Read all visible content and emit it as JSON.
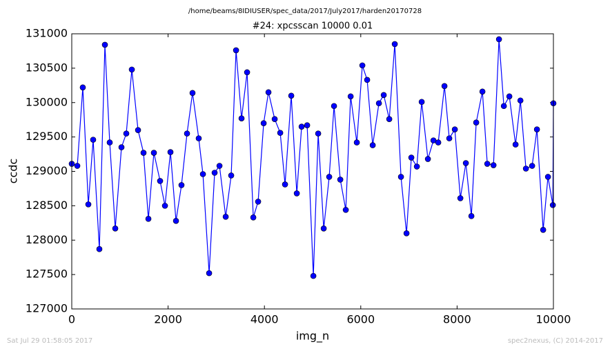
{
  "chart_data": {
    "type": "line",
    "suptitle": "/home/beams/8IDIUSER/spec_data/2017/July2017/harden20170728",
    "title": "#24: xpcsscan 10000 0.01",
    "x_label": "img_n",
    "y_label": "ccdc",
    "footer_left": "Sat Jul 29 01:58:05 2017",
    "footer_right": "spec2nexus, (C) 2014-2017",
    "xlim": [
      0,
      10000
    ],
    "ylim": [
      127000,
      131000
    ],
    "xticks": [
      0,
      2000,
      4000,
      6000,
      8000,
      10000
    ],
    "yticks": [
      127000,
      127500,
      128000,
      128500,
      129000,
      129500,
      130000,
      130500,
      131000
    ],
    "grid": false,
    "series": [
      {
        "name": "ccdc",
        "color": "#0000ff",
        "x": [
          0,
          115,
          229,
          344,
          444,
          573,
          688,
          788,
          903,
          1032,
          1132,
          1247,
          1376,
          1490,
          1591,
          1705,
          1834,
          1935,
          2049,
          2164,
          2278,
          2393,
          2507,
          2636,
          2723,
          2852,
          2966,
          3067,
          3196,
          3310,
          3411,
          3525,
          3640,
          3769,
          3869,
          3984,
          4084,
          4213,
          4328,
          4428,
          4557,
          4672,
          4772,
          4887,
          5016,
          5116,
          5231,
          5345,
          5445,
          5575,
          5689,
          5790,
          5918,
          6033,
          6133,
          6248,
          6377,
          6477,
          6592,
          6706,
          6835,
          6950,
          7050,
          7165,
          7265,
          7394,
          7509,
          7609,
          7738,
          7838,
          7953,
          8068,
          8182,
          8297,
          8397,
          8526,
          8627,
          8756,
          8870,
          8971,
          9085,
          9214,
          9315,
          9429,
          9558,
          9658,
          9787,
          9887,
          9988,
          10000
        ],
        "values": [
          129110,
          129080,
          130220,
          128520,
          129460,
          127870,
          130840,
          129420,
          128170,
          129350,
          129550,
          130480,
          129600,
          129270,
          128310,
          129270,
          128860,
          128500,
          129280,
          128280,
          128800,
          129550,
          130140,
          129480,
          128960,
          127520,
          128980,
          129080,
          128340,
          128940,
          130760,
          129770,
          130440,
          128330,
          128560,
          129700,
          130150,
          129760,
          129560,
          128810,
          130100,
          128680,
          129650,
          129670,
          127480,
          129550,
          128170,
          128920,
          129950,
          128880,
          128440,
          130090,
          129420,
          130540,
          130330,
          129380,
          129990,
          130110,
          129760,
          130850,
          128920,
          128100,
          129200,
          129070,
          130010,
          129180,
          129450,
          129420,
          130240,
          129480,
          129610,
          128610,
          129120,
          128350,
          129710,
          130160,
          129110,
          129090,
          130920,
          129950,
          130090,
          129390,
          130030,
          129040,
          129080,
          129610,
          128150,
          128920,
          128510,
          129990
        ]
      }
    ]
  }
}
